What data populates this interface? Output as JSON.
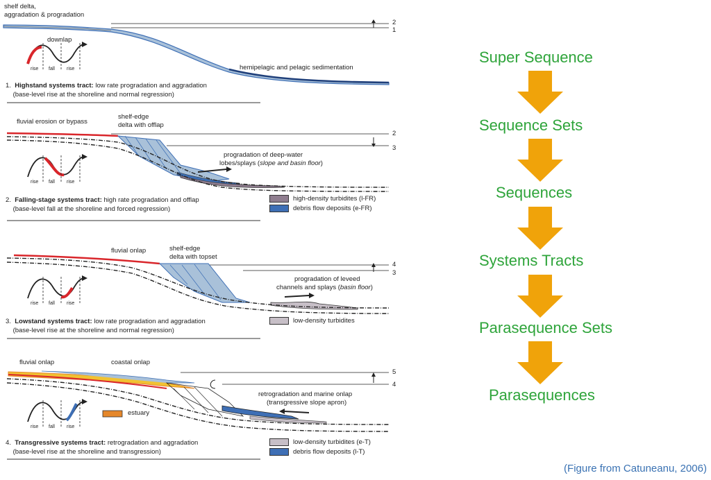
{
  "panels": [
    {
      "labels": [
        "shelf delta,",
        "aggradation & progradation",
        "downlap",
        "hemipelagic and pelagic sedimentation"
      ],
      "curve_labels": [
        "rise",
        "fall",
        "rise"
      ],
      "numbers": [
        "2",
        "1"
      ],
      "caption_num": "1.",
      "caption_title": "Highstand systems tract:",
      "caption_rest": " low rate progradation and aggradation",
      "caption_line2": "(base-level rise at the shoreline and normal regression)"
    },
    {
      "labels": [
        "fluvial erosion or bypass",
        "shelf-edge",
        "delta with offlap",
        "progradation of deep-water",
        "lobes/splays ("
      ],
      "label_italic": "slope and basin floor",
      "label_close": ")",
      "curve_labels": [
        "rise",
        "fall",
        "rise"
      ],
      "numbers": [
        "2",
        "3"
      ],
      "caption_num": "2.",
      "caption_title": "Falling-stage systems tract:",
      "caption_rest": " high rate progradation and offlap",
      "caption_line2": "(base-level fall at the shoreline and forced regression)",
      "legend": [
        "high-density turbidites (l-FR)",
        "debris flow deposits (e-FR)"
      ]
    },
    {
      "labels": [
        "fluvial onlap",
        "shelf-edge",
        "delta with topset",
        "progradation of leveed",
        "channels and splays ("
      ],
      "label_italic": "basin floor",
      "label_close": ")",
      "curve_labels": [
        "rise",
        "fall",
        "rise"
      ],
      "numbers": [
        "4",
        "3"
      ],
      "caption_num": "3.",
      "caption_title": "Lowstand systems tract:",
      "caption_rest": " low rate progradation and aggradation",
      "caption_line2": "(base-level rise at the shoreline and normal regression)",
      "legend": [
        "low-density turbidites"
      ]
    },
    {
      "labels": [
        "fluvial onlap",
        "coastal onlap",
        "retrogradation and marine onlap",
        "(transgressive slope apron)",
        "estuary"
      ],
      "curve_labels": [
        "rise",
        "fall",
        "rise"
      ],
      "numbers": [
        "5",
        "4"
      ],
      "caption_num": "4.",
      "caption_title": "Transgressive systems tract:",
      "caption_rest": " retrogradation and aggradation",
      "caption_line2": "(base-level rise at the shoreline and transgression)",
      "legend": [
        "low-density turbidites (e-T)",
        "debris flow deposits (l-T)"
      ]
    }
  ],
  "hierarchy": [
    "Super Sequence",
    "Sequence Sets",
    "Sequences",
    "Systems Tracts",
    "Parasequence Sets",
    "Parasequences"
  ],
  "credit": "(Figure from Catuneanu, 2006)",
  "colors": {
    "hierarchy_text": "#2ea43a",
    "arrow": "#f0a30a",
    "credit": "#3a72b3",
    "fluvial": "#d9262b",
    "delta": "#a9c1d9",
    "debris": "#3e6fb5",
    "turbidite_high": "#8f7d8f",
    "turbidite_low": "#c7bfc7",
    "estuary": "#e5872a",
    "coastal": "#f1c232"
  }
}
